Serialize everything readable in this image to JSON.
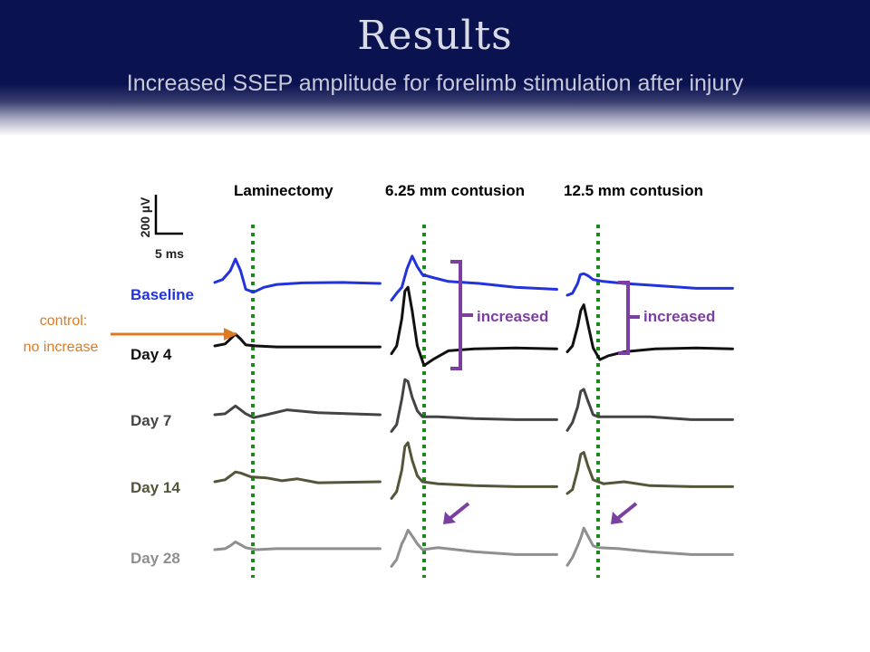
{
  "slide": {
    "title": "Results",
    "subtitle": "Increased SSEP amplitude for forelimb stimulation after injury"
  },
  "scale_bar": {
    "vertical_label": "200 µV",
    "horizontal_label": "5 ms"
  },
  "annotations": {
    "control_line1": "control:",
    "control_line2": "no increase",
    "increased_1": "increased",
    "increased_2": "increased"
  },
  "colors": {
    "header_bg": "#0b1250",
    "baseline": "#2233dd",
    "day4": "#111111",
    "day7": "#444444",
    "day14": "#55553a",
    "day28": "#8f8f8f",
    "guide_line": "#1a8a1a",
    "annotation": "#7a3fa0",
    "control_arrow": "#e07a22"
  },
  "chart_data": {
    "type": "line",
    "panels": [
      "Laminectomy",
      "6.25 mm contusion",
      "12.5 mm contusion"
    ],
    "rows": [
      {
        "label": "Baseline",
        "color": "#2233dd"
      },
      {
        "label": "Day 4",
        "color": "#111111"
      },
      {
        "label": "Day 7",
        "color": "#444444"
      },
      {
        "label": "Day 14",
        "color": "#55553a"
      },
      {
        "label": "Day 28",
        "color": "#8f8f8f"
      }
    ],
    "traces": [
      [
        [
          [
            0,
            -5
          ],
          [
            1.5,
            -20
          ],
          [
            3,
            -65
          ],
          [
            4,
            -125
          ],
          [
            5,
            -65
          ],
          [
            6,
            30
          ],
          [
            7.5,
            45
          ],
          [
            9.5,
            20
          ],
          [
            12,
            5
          ],
          [
            17,
            -3
          ],
          [
            25,
            -5
          ],
          [
            32,
            0
          ]
        ],
        [
          [
            0,
            0
          ],
          [
            2,
            -10
          ],
          [
            3,
            -35
          ],
          [
            4,
            -60
          ],
          [
            5,
            -35
          ],
          [
            6,
            -5
          ],
          [
            8,
            0
          ],
          [
            12,
            5
          ],
          [
            20,
            5
          ],
          [
            32,
            5
          ]
        ],
        [
          [
            0,
            0
          ],
          [
            2,
            -5
          ],
          [
            3,
            -25
          ],
          [
            4,
            -45
          ],
          [
            5,
            -25
          ],
          [
            6,
            -5
          ],
          [
            7.5,
            15
          ],
          [
            10,
            0
          ],
          [
            14,
            -25
          ],
          [
            20,
            -10
          ],
          [
            32,
            0
          ]
        ],
        [
          [
            0,
            0
          ],
          [
            2,
            -10
          ],
          [
            3,
            -30
          ],
          [
            4,
            -50
          ],
          [
            5,
            -45
          ],
          [
            7,
            -25
          ],
          [
            10,
            -20
          ],
          [
            13,
            -5
          ],
          [
            16,
            -15
          ],
          [
            20,
            5
          ],
          [
            32,
            0
          ]
        ],
        [
          [
            0,
            0
          ],
          [
            2,
            -5
          ],
          [
            3,
            -20
          ],
          [
            4,
            -40
          ],
          [
            5,
            -25
          ],
          [
            6,
            -10
          ],
          [
            8,
            0
          ],
          [
            12,
            -5
          ],
          [
            20,
            -5
          ],
          [
            32,
            -5
          ]
        ]
      ],
      [
        [
          [
            0,
            85
          ],
          [
            1,
            50
          ],
          [
            2,
            20
          ],
          [
            3,
            -75
          ],
          [
            4,
            -140
          ],
          [
            5,
            -85
          ],
          [
            6,
            -45
          ],
          [
            8,
            -30
          ],
          [
            11,
            -10
          ],
          [
            17,
            0
          ],
          [
            24,
            20
          ],
          [
            32,
            30
          ]
        ],
        [
          [
            0,
            40
          ],
          [
            1,
            0
          ],
          [
            2,
            -140
          ],
          [
            2.6,
            -280
          ],
          [
            3.2,
            -300
          ],
          [
            4,
            -180
          ],
          [
            5,
            0
          ],
          [
            6.3,
            100
          ],
          [
            8,
            70
          ],
          [
            11,
            25
          ],
          [
            16,
            15
          ],
          [
            24,
            10
          ],
          [
            32,
            15
          ]
        ],
        [
          [
            0,
            85
          ],
          [
            1,
            50
          ],
          [
            2,
            -80
          ],
          [
            2.6,
            -180
          ],
          [
            3.2,
            -170
          ],
          [
            4,
            -90
          ],
          [
            5,
            -20
          ],
          [
            6,
            10
          ],
          [
            9,
            10
          ],
          [
            16,
            20
          ],
          [
            24,
            25
          ],
          [
            32,
            25
          ]
        ],
        [
          [
            0,
            85
          ],
          [
            1,
            50
          ],
          [
            2,
            -60
          ],
          [
            2.6,
            -180
          ],
          [
            3.2,
            -200
          ],
          [
            4,
            -110
          ],
          [
            5,
            -30
          ],
          [
            6,
            0
          ],
          [
            9,
            10
          ],
          [
            16,
            20
          ],
          [
            24,
            25
          ],
          [
            32,
            25
          ]
        ],
        [
          [
            0,
            85
          ],
          [
            1,
            50
          ],
          [
            2,
            -30
          ],
          [
            2.6,
            -60
          ],
          [
            3.2,
            -100
          ],
          [
            4,
            -70
          ],
          [
            5,
            -30
          ],
          [
            6,
            0
          ],
          [
            9,
            -10
          ],
          [
            16,
            10
          ],
          [
            24,
            25
          ],
          [
            32,
            25
          ]
        ]
      ],
      [
        [
          [
            0,
            60
          ],
          [
            1,
            50
          ],
          [
            2,
            0
          ],
          [
            2.5,
            -45
          ],
          [
            3.2,
            -50
          ],
          [
            4,
            -40
          ],
          [
            5,
            -20
          ],
          [
            7,
            -10
          ],
          [
            11,
            0
          ],
          [
            17,
            10
          ],
          [
            25,
            25
          ],
          [
            32,
            25
          ]
        ],
        [
          [
            0,
            30
          ],
          [
            1,
            0
          ],
          [
            2,
            -100
          ],
          [
            2.6,
            -180
          ],
          [
            3.2,
            -210
          ],
          [
            4,
            -110
          ],
          [
            5,
            10
          ],
          [
            6.3,
            70
          ],
          [
            8,
            50
          ],
          [
            11,
            30
          ],
          [
            17,
            15
          ],
          [
            25,
            10
          ],
          [
            32,
            15
          ]
        ],
        [
          [
            0,
            80
          ],
          [
            1,
            40
          ],
          [
            2,
            -40
          ],
          [
            2.6,
            -120
          ],
          [
            3.2,
            -130
          ],
          [
            4,
            -70
          ],
          [
            5,
            0
          ],
          [
            6,
            10
          ],
          [
            9,
            10
          ],
          [
            16,
            10
          ],
          [
            24,
            25
          ],
          [
            32,
            25
          ]
        ],
        [
          [
            0,
            60
          ],
          [
            1,
            40
          ],
          [
            2,
            -60
          ],
          [
            2.6,
            -140
          ],
          [
            3.2,
            -150
          ],
          [
            4,
            -80
          ],
          [
            5,
            -10
          ],
          [
            7,
            10
          ],
          [
            11,
            0
          ],
          [
            16,
            20
          ],
          [
            24,
            25
          ],
          [
            32,
            25
          ]
        ],
        [
          [
            0,
            80
          ],
          [
            1,
            40
          ],
          [
            2,
            -20
          ],
          [
            2.6,
            -60
          ],
          [
            3.2,
            -110
          ],
          [
            4,
            -70
          ],
          [
            5,
            -20
          ],
          [
            6,
            -10
          ],
          [
            10,
            -5
          ],
          [
            16,
            10
          ],
          [
            24,
            25
          ],
          [
            32,
            25
          ]
        ]
      ]
    ],
    "x_unit": "ms",
    "y_unit": "µV",
    "y_note": "negative-up convention; values are relative to each trace's baseline",
    "scale_bar": {
      "x": 5,
      "y": 200
    },
    "stimulus_marker_ms": 4
  }
}
